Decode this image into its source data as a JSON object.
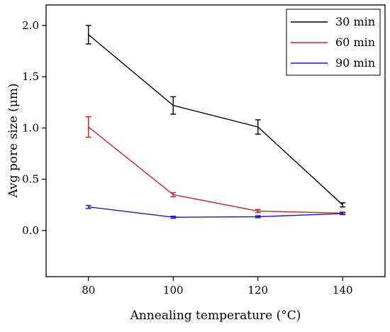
{
  "chart_data": {
    "type": "line",
    "title": "",
    "xlabel": "Annealing temperature (°C)",
    "ylabel": "Avg pore size (μm)",
    "x": [
      80,
      100,
      120,
      140
    ],
    "x_tick_labels": [
      "80",
      "100",
      "120",
      "140"
    ],
    "y_tick_labels": [
      "0.0",
      "0.5",
      "1.0",
      "1.5",
      "2.0"
    ],
    "y_ticks": [
      0.0,
      0.5,
      1.0,
      1.5,
      2.0
    ],
    "xlim": [
      70,
      150
    ],
    "ylim": [
      -0.45,
      2.2
    ],
    "grid": false,
    "legend_position": "top-right",
    "series": [
      {
        "name": "30 min",
        "color": "#000000",
        "values": [
          1.91,
          1.22,
          1.01,
          0.25
        ],
        "errors": [
          0.09,
          0.085,
          0.07,
          0.02
        ]
      },
      {
        "name": "60 min",
        "color": "#d42020",
        "values": [
          1.01,
          0.35,
          0.19,
          0.17
        ],
        "errors": [
          0.1,
          0.02,
          0.015,
          0.01
        ]
      },
      {
        "name": "90 min",
        "color": "#1a1ad4",
        "values": [
          0.23,
          0.13,
          0.135,
          0.165
        ],
        "errors": [
          0.015,
          0.01,
          0.01,
          0.01
        ]
      }
    ]
  }
}
